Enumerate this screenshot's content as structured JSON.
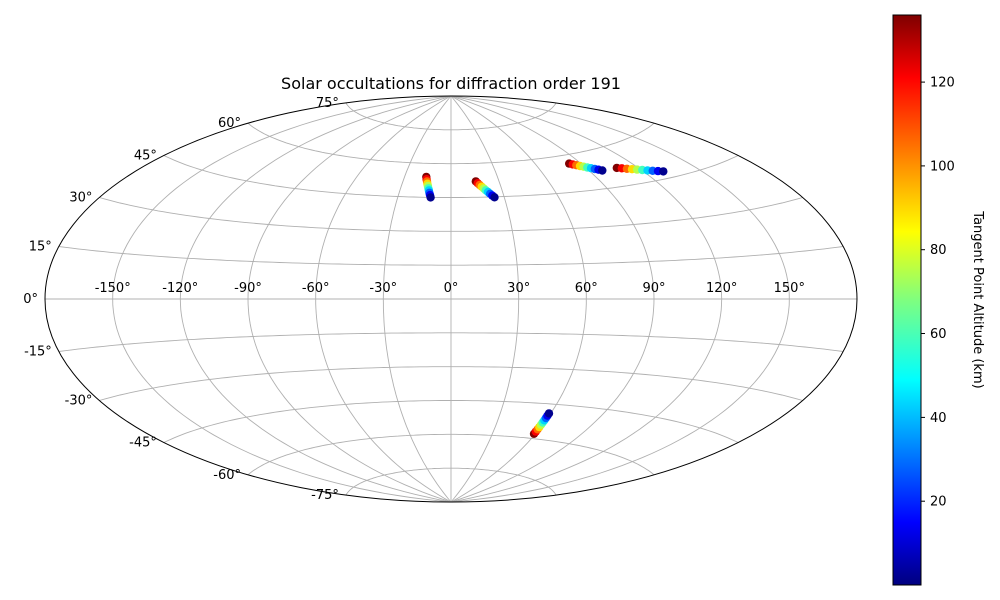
{
  "chart_data": {
    "type": "scatter",
    "projection": "aitoff",
    "title": "Solar occultations for diffraction order 191",
    "xlabel": "",
    "ylabel": "",
    "lon_ticks": [
      "-150°",
      "-120°",
      "-90°",
      "-60°",
      "-30°",
      "0°",
      "30°",
      "60°",
      "90°",
      "120°",
      "150°"
    ],
    "lon_tick_values": [
      -150,
      -120,
      -90,
      -60,
      -30,
      0,
      30,
      60,
      90,
      120,
      150
    ],
    "lat_ticks": [
      "75°",
      "60°",
      "45°",
      "30°",
      "15°",
      "0°",
      "-15°",
      "-30°",
      "-45°",
      "-60°",
      "-75°"
    ],
    "lat_tick_values": [
      75,
      60,
      45,
      30,
      15,
      0,
      -15,
      -30,
      -45,
      -60,
      -75
    ],
    "grid": true,
    "colorbar": {
      "label": "Tangent Point Altitude (km)",
      "colormap": "jet",
      "range": [
        0,
        136
      ],
      "ticks": [
        20,
        40,
        60,
        80,
        100,
        120
      ]
    },
    "series": [
      {
        "points": [
          {
            "lon": -16,
            "lat": 54,
            "alt": 136
          },
          {
            "lon": -15.5,
            "lat": 53,
            "alt": 120
          },
          {
            "lon": -15,
            "lat": 52,
            "alt": 105
          },
          {
            "lon": -14.5,
            "lat": 51,
            "alt": 90
          },
          {
            "lon": -14,
            "lat": 50,
            "alt": 75
          },
          {
            "lon": -13.5,
            "lat": 49,
            "alt": 60
          },
          {
            "lon": -13,
            "lat": 48,
            "alt": 45
          },
          {
            "lon": -12.5,
            "lat": 47,
            "alt": 30
          },
          {
            "lon": -12,
            "lat": 46,
            "alt": 15
          },
          {
            "lon": -11.5,
            "lat": 45,
            "alt": 2
          }
        ]
      },
      {
        "points": [
          {
            "lon": 15.5,
            "lat": 52,
            "alt": 136
          },
          {
            "lon": 16.5,
            "lat": 51.2,
            "alt": 120
          },
          {
            "lon": 17.5,
            "lat": 50.4,
            "alt": 105
          },
          {
            "lon": 18.5,
            "lat": 49.6,
            "alt": 90
          },
          {
            "lon": 19.5,
            "lat": 48.8,
            "alt": 75
          },
          {
            "lon": 20.5,
            "lat": 48,
            "alt": 60
          },
          {
            "lon": 21.5,
            "lat": 47.2,
            "alt": 45
          },
          {
            "lon": 22.5,
            "lat": 46.4,
            "alt": 30
          },
          {
            "lon": 23.5,
            "lat": 45.6,
            "alt": 15
          },
          {
            "lon": 24.5,
            "lat": 44.8,
            "alt": 2
          }
        ]
      },
      {
        "points": [
          {
            "lon": 82.5,
            "lat": 56.5,
            "alt": 136
          },
          {
            "lon": 84.2,
            "lat": 56,
            "alt": 120
          },
          {
            "lon": 85.9,
            "lat": 55.5,
            "alt": 105
          },
          {
            "lon": 87.6,
            "lat": 55,
            "alt": 90
          },
          {
            "lon": 89.3,
            "lat": 54.5,
            "alt": 75
          },
          {
            "lon": 91,
            "lat": 54,
            "alt": 60
          },
          {
            "lon": 92.7,
            "lat": 53.5,
            "alt": 45
          },
          {
            "lon": 94.4,
            "lat": 53,
            "alt": 30
          },
          {
            "lon": 96.1,
            "lat": 52.5,
            "alt": 15
          },
          {
            "lon": 97.8,
            "lat": 52,
            "alt": 2
          }
        ]
      },
      {
        "points": [
          {
            "lon": 108,
            "lat": 52,
            "alt": 136
          },
          {
            "lon": 110.5,
            "lat": 51.5,
            "alt": 120
          },
          {
            "lon": 113,
            "lat": 51,
            "alt": 105
          },
          {
            "lon": 115.5,
            "lat": 50.5,
            "alt": 90
          },
          {
            "lon": 118,
            "lat": 50,
            "alt": 75
          },
          {
            "lon": 120.5,
            "lat": 49.5,
            "alt": 60
          },
          {
            "lon": 123,
            "lat": 49,
            "alt": 45
          },
          {
            "lon": 125.5,
            "lat": 48.5,
            "alt": 30
          },
          {
            "lon": 128,
            "lat": 48,
            "alt": 15
          },
          {
            "lon": 130.5,
            "lat": 47.5,
            "alt": 2
          }
        ]
      },
      {
        "points": [
          {
            "lon": 59,
            "lat": -58,
            "alt": 136
          },
          {
            "lon": 59,
            "lat": -57,
            "alt": 120
          },
          {
            "lon": 59,
            "lat": -56,
            "alt": 105
          },
          {
            "lon": 59,
            "lat": -55,
            "alt": 90
          },
          {
            "lon": 59,
            "lat": -54,
            "alt": 75
          },
          {
            "lon": 59,
            "lat": -53,
            "alt": 60
          },
          {
            "lon": 59,
            "lat": -52,
            "alt": 45
          },
          {
            "lon": 59,
            "lat": -51,
            "alt": 30
          },
          {
            "lon": 59,
            "lat": -50,
            "alt": 15
          },
          {
            "lon": 59,
            "lat": -49,
            "alt": 2
          }
        ]
      }
    ]
  }
}
